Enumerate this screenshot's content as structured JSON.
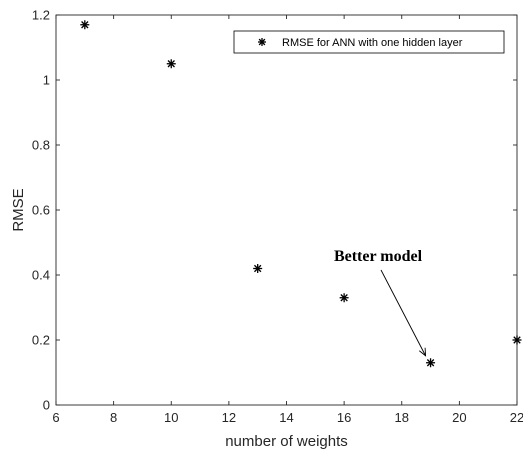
{
  "chart_data": {
    "type": "scatter",
    "title": "",
    "xlabel": "number of weights",
    "ylabel": "RMSE",
    "xlim": [
      6,
      22
    ],
    "ylim": [
      0,
      1.2
    ],
    "xticks": [
      6,
      8,
      10,
      12,
      14,
      16,
      18,
      20,
      22
    ],
    "yticks": [
      0,
      0.2,
      0.4,
      0.6,
      0.8,
      1,
      1.2
    ],
    "grid": false,
    "legend_position": "top-right",
    "series": [
      {
        "name": "RMSE for ANN with one hidden layer",
        "marker": "asterisk",
        "color": "#000000",
        "x": [
          7,
          10,
          13,
          16,
          19,
          22
        ],
        "y": [
          1.17,
          1.05,
          0.42,
          0.33,
          0.13,
          0.2
        ]
      }
    ],
    "annotations": [
      {
        "text": "Better model",
        "arrow_to": {
          "x": 19,
          "y": 0.13
        }
      }
    ]
  }
}
